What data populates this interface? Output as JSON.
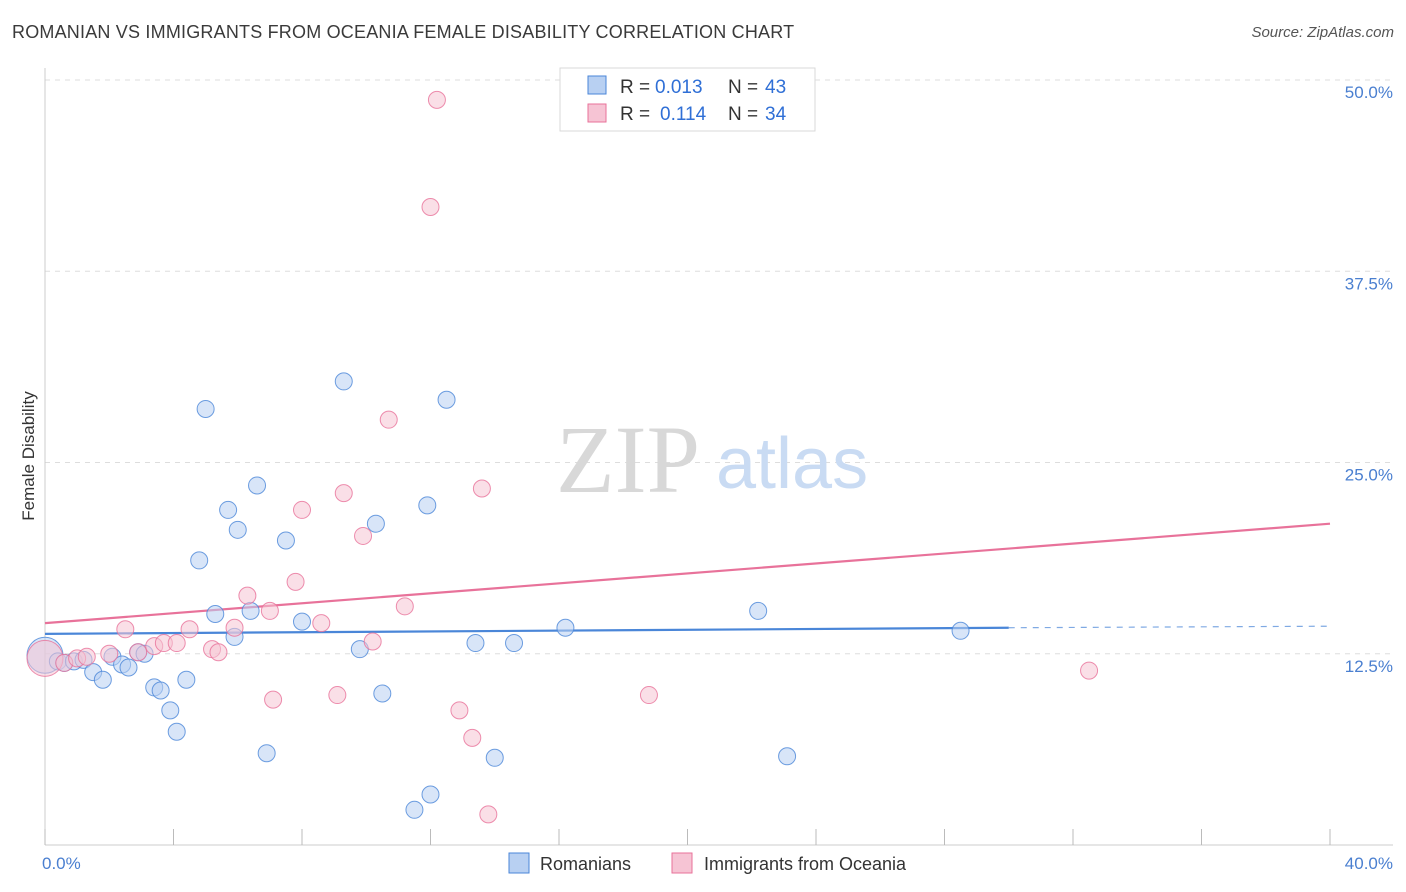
{
  "chart_data": {
    "type": "scatter",
    "title": "ROMANIAN VS IMMIGRANTS FROM OCEANIA FEMALE DISABILITY CORRELATION CHART",
    "source": "Source: ZipAtlas.com",
    "xlabel": "",
    "ylabel": "Female Disability",
    "xlim": [
      0,
      40
    ],
    "ylim": [
      0,
      50
    ],
    "x_tick_labels": [
      "0.0%",
      "40.0%"
    ],
    "y_ticks": [
      12.5,
      25.0,
      37.5,
      50.0
    ],
    "y_tick_labels": [
      "12.5%",
      "25.0%",
      "37.5%",
      "50.0%"
    ],
    "watermark": {
      "zip": "ZIP",
      "atlas": "atlas"
    },
    "legend": [
      {
        "r_label": "R =",
        "r_value": "0.013",
        "n_label": "N =",
        "n_value": "43"
      },
      {
        "r_label": "R =",
        "r_value": "0.114",
        "n_label": "N =",
        "n_value": "34"
      }
    ],
    "colors": {
      "romanians": "#4a86d8",
      "oceania": "#e8729a",
      "romanians_fill": "#b8d0f2",
      "oceania_fill": "#f6c4d4"
    },
    "series": [
      {
        "name": "Romanians",
        "trend": {
          "x0": 0,
          "y0": 13.8,
          "x1": 30,
          "y1": 14.2,
          "dash_to": 40,
          "dash_y": 14.3
        },
        "points": [
          [
            0.0,
            12.4
          ],
          [
            0.4,
            12.0
          ],
          [
            0.6,
            11.9
          ],
          [
            0.9,
            12.0
          ],
          [
            1.2,
            12.1
          ],
          [
            1.5,
            11.3
          ],
          [
            1.8,
            10.8
          ],
          [
            2.1,
            12.3
          ],
          [
            2.4,
            11.8
          ],
          [
            2.6,
            11.6
          ],
          [
            2.9,
            12.6
          ],
          [
            3.1,
            12.5
          ],
          [
            3.4,
            10.3
          ],
          [
            3.6,
            10.1
          ],
          [
            3.9,
            8.8
          ],
          [
            4.1,
            7.4
          ],
          [
            4.4,
            10.8
          ],
          [
            4.8,
            18.6
          ],
          [
            5.0,
            28.5
          ],
          [
            5.3,
            15.1
          ],
          [
            5.7,
            21.9
          ],
          [
            5.9,
            13.6
          ],
          [
            6.0,
            20.6
          ],
          [
            6.4,
            15.3
          ],
          [
            6.6,
            23.5
          ],
          [
            6.9,
            6.0
          ],
          [
            7.5,
            19.9
          ],
          [
            8.0,
            14.6
          ],
          [
            9.3,
            30.3
          ],
          [
            9.8,
            12.8
          ],
          [
            10.3,
            21.0
          ],
          [
            10.5,
            9.9
          ],
          [
            11.5,
            2.3
          ],
          [
            11.9,
            22.2
          ],
          [
            12.0,
            3.3
          ],
          [
            12.5,
            29.1
          ],
          [
            13.4,
            13.2
          ],
          [
            14.0,
            5.7
          ],
          [
            14.6,
            13.2
          ],
          [
            16.2,
            14.2
          ],
          [
            22.2,
            15.3
          ],
          [
            23.1,
            5.8
          ],
          [
            28.5,
            14.0
          ]
        ]
      },
      {
        "name": "Immigrants from Oceania",
        "trend": {
          "x0": 0,
          "y0": 14.5,
          "x1": 40,
          "y1": 21.0
        },
        "points": [
          [
            0.0,
            12.2
          ],
          [
            0.6,
            11.9
          ],
          [
            1.0,
            12.2
          ],
          [
            1.3,
            12.3
          ],
          [
            2.0,
            12.5
          ],
          [
            2.5,
            14.1
          ],
          [
            2.9,
            12.6
          ],
          [
            3.4,
            13.0
          ],
          [
            3.7,
            13.2
          ],
          [
            4.1,
            13.2
          ],
          [
            4.5,
            14.1
          ],
          [
            5.2,
            12.8
          ],
          [
            5.4,
            12.6
          ],
          [
            5.9,
            14.2
          ],
          [
            6.3,
            16.3
          ],
          [
            7.0,
            15.3
          ],
          [
            7.1,
            9.5
          ],
          [
            7.8,
            17.2
          ],
          [
            8.0,
            21.9
          ],
          [
            8.6,
            14.5
          ],
          [
            9.1,
            9.8
          ],
          [
            9.3,
            23.0
          ],
          [
            9.9,
            20.2
          ],
          [
            10.2,
            13.3
          ],
          [
            10.7,
            27.8
          ],
          [
            11.2,
            15.6
          ],
          [
            12.0,
            41.7
          ],
          [
            12.2,
            48.7
          ],
          [
            12.9,
            8.8
          ],
          [
            13.3,
            7.0
          ],
          [
            13.6,
            23.3
          ],
          [
            13.8,
            2.0
          ],
          [
            18.8,
            9.8
          ],
          [
            32.5,
            11.4
          ]
        ]
      }
    ]
  }
}
